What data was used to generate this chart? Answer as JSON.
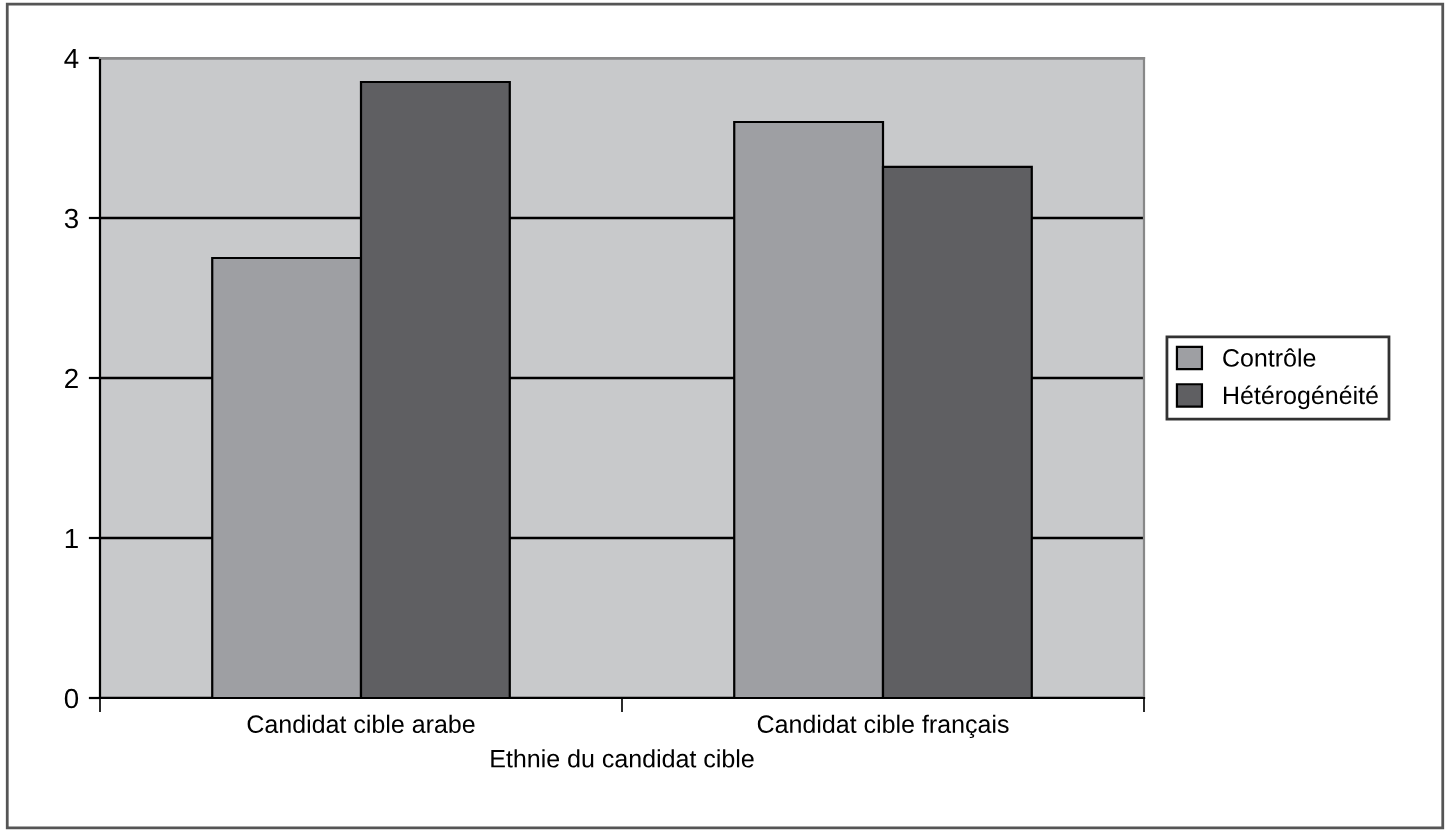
{
  "chart_data": {
    "type": "bar",
    "xlabel": "Ethnie du candidat cible",
    "categories": [
      "Candidat cible arabe",
      "Candidat cible français"
    ],
    "series": [
      {
        "name": "Contrôle",
        "color": "#9e9fa3",
        "values": [
          2.75,
          3.6
        ]
      },
      {
        "name": "Hétérogénéité",
        "color": "#5f5f62",
        "values": [
          3.85,
          3.32
        ]
      }
    ],
    "ylim": [
      0,
      4
    ],
    "yticks": [
      0,
      1,
      2,
      3,
      4
    ],
    "grid": "y",
    "legend": "right"
  }
}
